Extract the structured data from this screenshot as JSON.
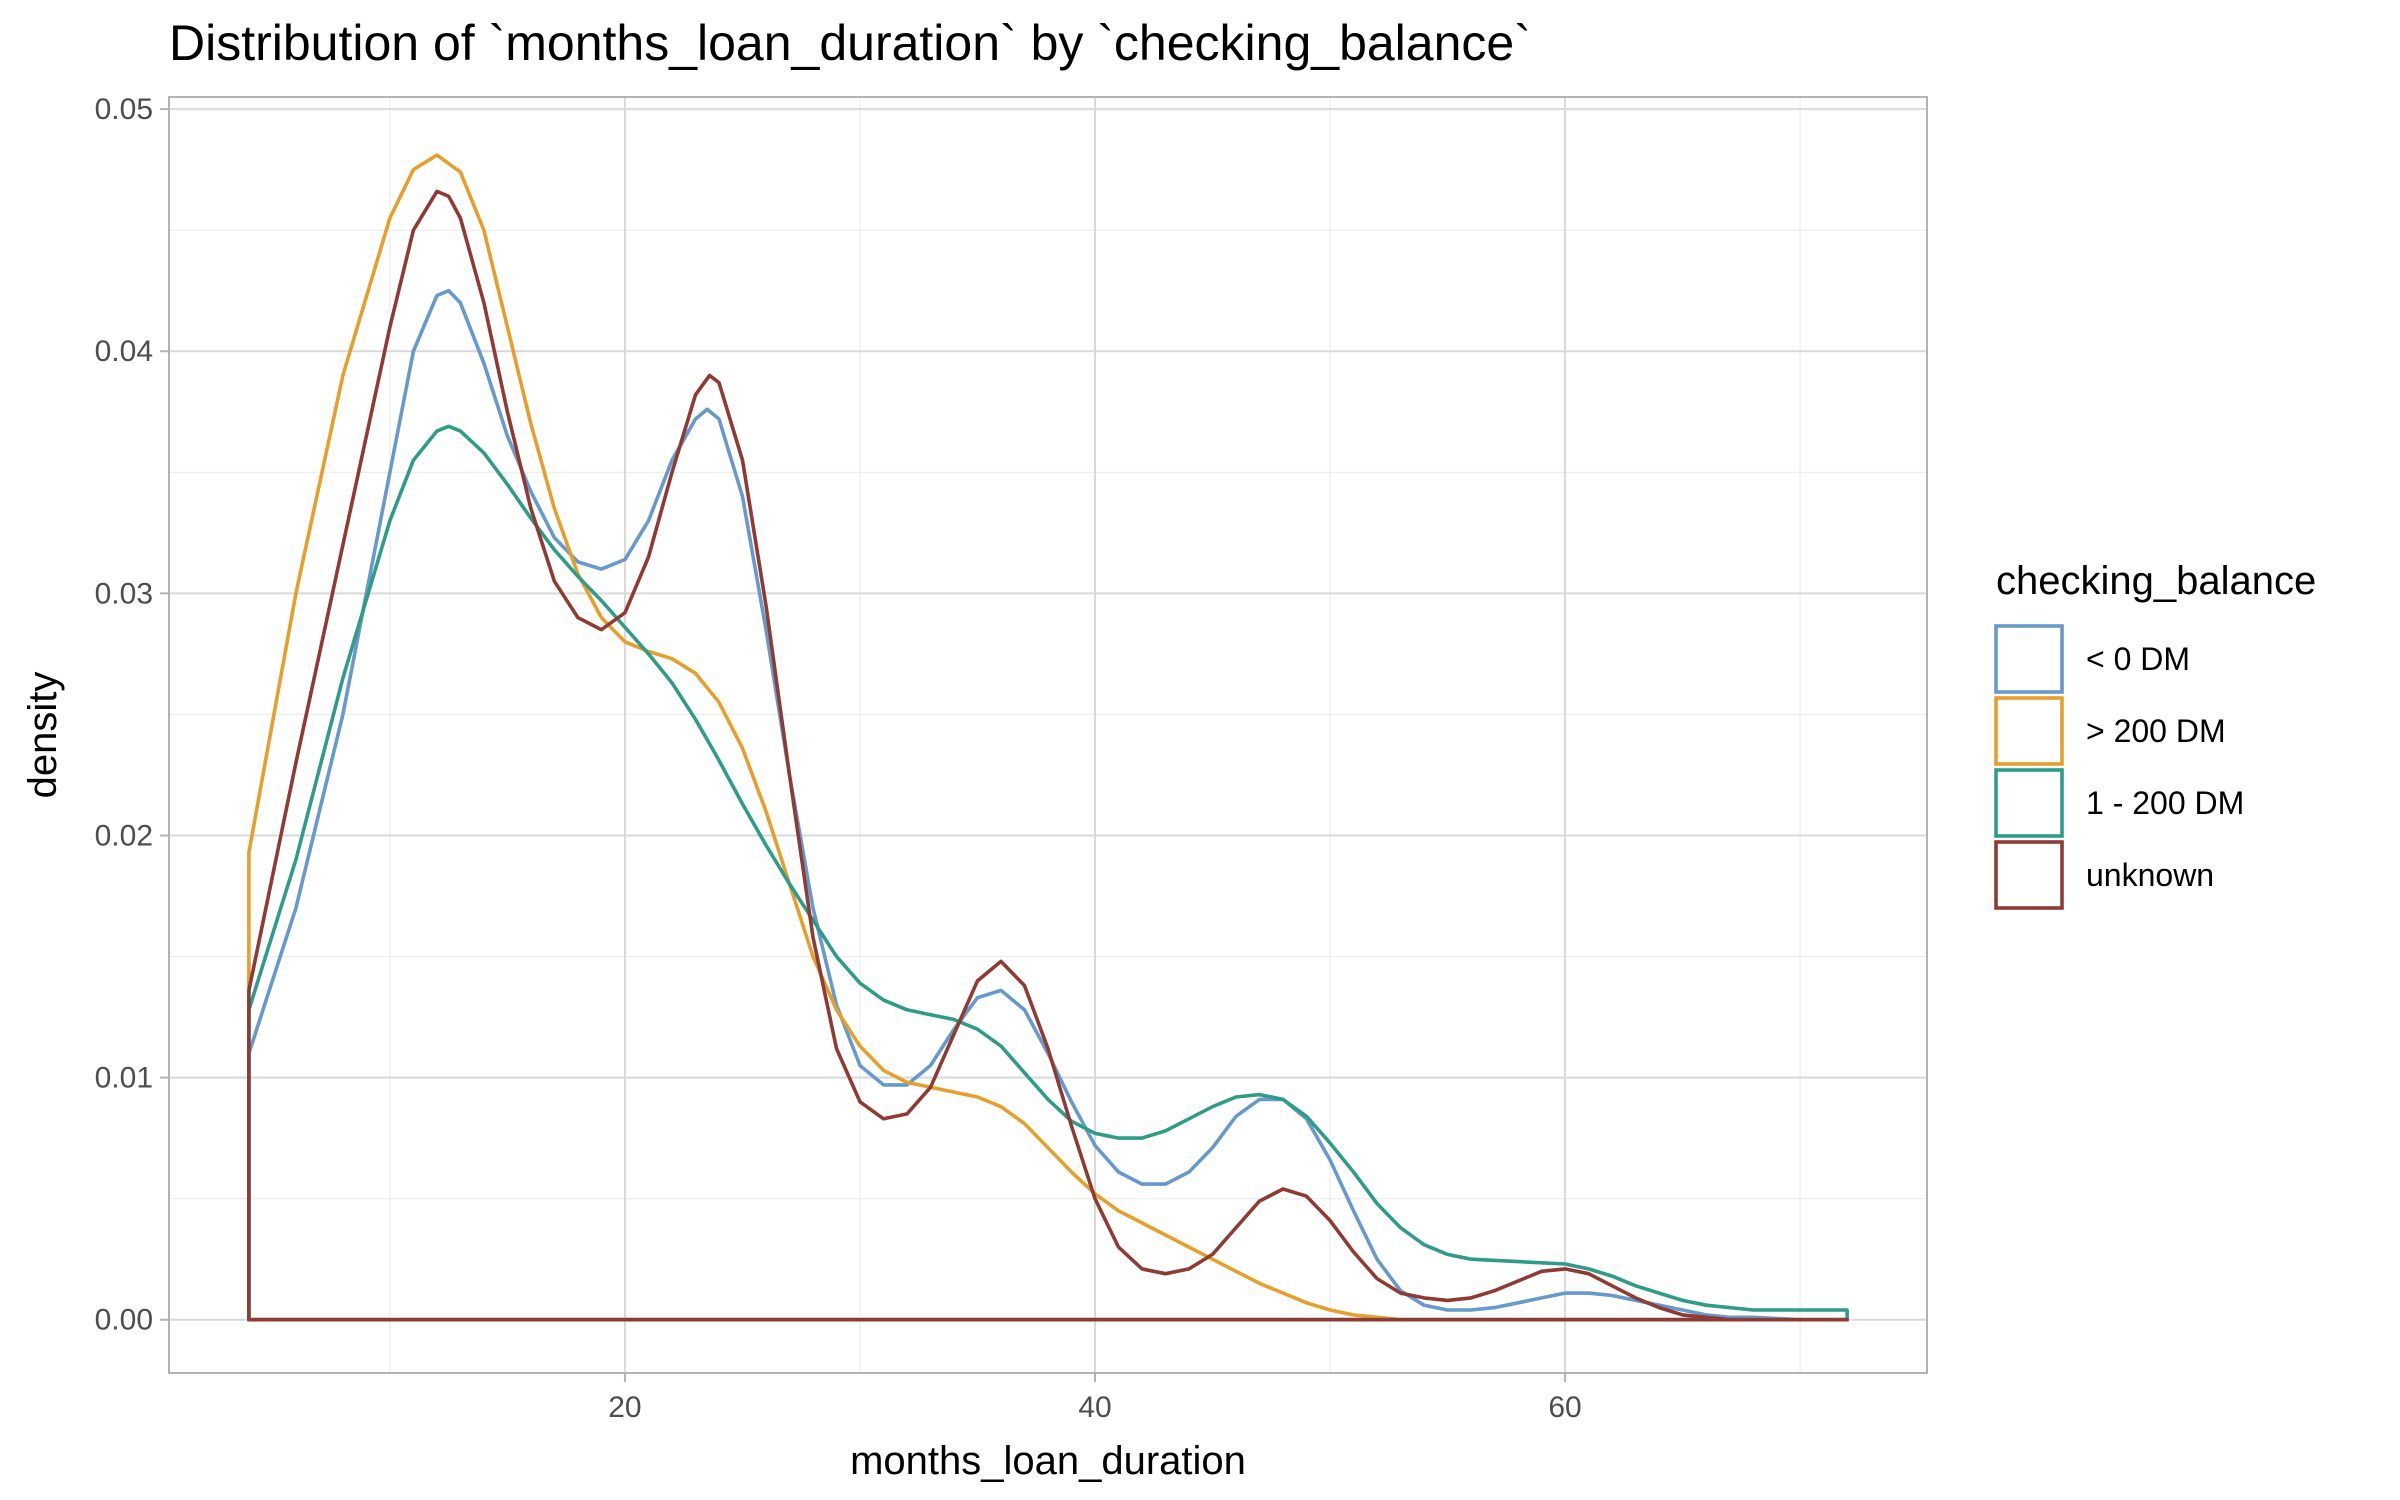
{
  "chart_data": {
    "type": "line",
    "title": "Distribution of `months_loan_duration` by `checking_balance`",
    "xlabel": "months_loan_duration",
    "ylabel": "density",
    "xlim": [
      0.6,
      75.4
    ],
    "ylim": [
      -0.0022,
      0.0505
    ],
    "x_ticks": [
      20,
      40,
      60
    ],
    "x_tick_labels": [
      "20",
      "40",
      "60"
    ],
    "x_minor_ticks": [
      10,
      30,
      50,
      70
    ],
    "y_ticks": [
      0,
      0.01,
      0.02,
      0.03,
      0.04,
      0.05
    ],
    "y_tick_labels": [
      "0.00",
      "0.01",
      "0.02",
      "0.03",
      "0.04",
      "0.05"
    ],
    "y_minor_ticks": [
      0.005,
      0.015,
      0.025,
      0.035,
      0.045
    ],
    "grid": true,
    "legend_position": "right",
    "legend_title": "checking_balance",
    "series": [
      {
        "name": "< 0 DM",
        "color": "#6699cc",
        "x_range": [
          4,
          72
        ],
        "points": [
          [
            4,
            0.011
          ],
          [
            6,
            0.017
          ],
          [
            8,
            0.025
          ],
          [
            10,
            0.035
          ],
          [
            11,
            0.04
          ],
          [
            12,
            0.0423
          ],
          [
            12.5,
            0.0425
          ],
          [
            13,
            0.042
          ],
          [
            14,
            0.0395
          ],
          [
            15,
            0.0365
          ],
          [
            16,
            0.0342
          ],
          [
            17,
            0.0323
          ],
          [
            18,
            0.0313
          ],
          [
            19,
            0.031
          ],
          [
            20,
            0.0314
          ],
          [
            21,
            0.033
          ],
          [
            22,
            0.0355
          ],
          [
            23,
            0.0372
          ],
          [
            23.5,
            0.0376
          ],
          [
            24,
            0.0372
          ],
          [
            25,
            0.034
          ],
          [
            26,
            0.0285
          ],
          [
            27,
            0.0225
          ],
          [
            28,
            0.017
          ],
          [
            29,
            0.013
          ],
          [
            30,
            0.0105
          ],
          [
            31,
            0.0097
          ],
          [
            32,
            0.0097
          ],
          [
            33,
            0.0105
          ],
          [
            34,
            0.012
          ],
          [
            35,
            0.0133
          ],
          [
            36,
            0.0136
          ],
          [
            37,
            0.0128
          ],
          [
            38,
            0.011
          ],
          [
            39,
            0.009
          ],
          [
            40,
            0.0072
          ],
          [
            41,
            0.0061
          ],
          [
            42,
            0.0056
          ],
          [
            43,
            0.0056
          ],
          [
            44,
            0.0061
          ],
          [
            45,
            0.0071
          ],
          [
            46,
            0.0084
          ],
          [
            47,
            0.0091
          ],
          [
            48,
            0.0091
          ],
          [
            49,
            0.0083
          ],
          [
            50,
            0.0066
          ],
          [
            51,
            0.0045
          ],
          [
            52,
            0.0025
          ],
          [
            53,
            0.0012
          ],
          [
            54,
            0.0006
          ],
          [
            55,
            0.0004
          ],
          [
            56,
            0.0004
          ],
          [
            57,
            0.0005
          ],
          [
            58,
            0.0007
          ],
          [
            59,
            0.0009
          ],
          [
            60,
            0.0011
          ],
          [
            61,
            0.0011
          ],
          [
            62,
            0.001
          ],
          [
            63,
            0.0008
          ],
          [
            64,
            0.0006
          ],
          [
            65,
            0.0004
          ],
          [
            66,
            0.0002
          ],
          [
            67,
            0.0001
          ],
          [
            68,
            0.0001
          ],
          [
            70,
            0.0
          ],
          [
            72,
            0.0
          ]
        ]
      },
      {
        "name": "> 200 DM",
        "color": "#e69f2b",
        "x_range": [
          4,
          72
        ],
        "points": [
          [
            4,
            0.0193
          ],
          [
            6,
            0.03
          ],
          [
            8,
            0.039
          ],
          [
            10,
            0.0455
          ],
          [
            11,
            0.0475
          ],
          [
            12,
            0.0481
          ],
          [
            13,
            0.0474
          ],
          [
            14,
            0.045
          ],
          [
            15,
            0.041
          ],
          [
            16,
            0.037
          ],
          [
            17,
            0.0335
          ],
          [
            18,
            0.0308
          ],
          [
            19,
            0.029
          ],
          [
            20,
            0.028
          ],
          [
            21,
            0.0276
          ],
          [
            22,
            0.0273
          ],
          [
            23,
            0.0267
          ],
          [
            24,
            0.0255
          ],
          [
            25,
            0.0236
          ],
          [
            26,
            0.021
          ],
          [
            27,
            0.018
          ],
          [
            28,
            0.015
          ],
          [
            29,
            0.0128
          ],
          [
            30,
            0.0113
          ],
          [
            31,
            0.0103
          ],
          [
            32,
            0.0098
          ],
          [
            33,
            0.0096
          ],
          [
            34,
            0.0094
          ],
          [
            35,
            0.0092
          ],
          [
            36,
            0.0088
          ],
          [
            37,
            0.0081
          ],
          [
            38,
            0.0071
          ],
          [
            39,
            0.0061
          ],
          [
            40,
            0.0052
          ],
          [
            41,
            0.0045
          ],
          [
            42,
            0.004
          ],
          [
            43,
            0.0035
          ],
          [
            44,
            0.003
          ],
          [
            45,
            0.0025
          ],
          [
            46,
            0.002
          ],
          [
            47,
            0.0015
          ],
          [
            48,
            0.0011
          ],
          [
            49,
            0.0007
          ],
          [
            50,
            0.0004
          ],
          [
            51,
            0.0002
          ],
          [
            52,
            0.0001
          ],
          [
            53,
            0.0
          ],
          [
            55,
            0.0
          ],
          [
            60,
            0.0
          ],
          [
            65,
            0.0
          ],
          [
            72,
            0.0
          ]
        ]
      },
      {
        "name": "1 - 200 DM",
        "color": "#2f9c8a",
        "x_range": [
          4,
          72
        ],
        "points": [
          [
            4,
            0.0128
          ],
          [
            6,
            0.019
          ],
          [
            8,
            0.0265
          ],
          [
            10,
            0.033
          ],
          [
            11,
            0.0355
          ],
          [
            12,
            0.0367
          ],
          [
            12.5,
            0.0369
          ],
          [
            13,
            0.0367
          ],
          [
            14,
            0.0358
          ],
          [
            15,
            0.0345
          ],
          [
            16,
            0.0331
          ],
          [
            17,
            0.0318
          ],
          [
            18,
            0.0307
          ],
          [
            19,
            0.0297
          ],
          [
            20,
            0.0286
          ],
          [
            21,
            0.0275
          ],
          [
            22,
            0.0263
          ],
          [
            23,
            0.0248
          ],
          [
            24,
            0.0231
          ],
          [
            25,
            0.0213
          ],
          [
            26,
            0.0196
          ],
          [
            27,
            0.018
          ],
          [
            28,
            0.0165
          ],
          [
            29,
            0.015
          ],
          [
            30,
            0.0139
          ],
          [
            31,
            0.0132
          ],
          [
            32,
            0.0128
          ],
          [
            33,
            0.0126
          ],
          [
            34,
            0.0124
          ],
          [
            35,
            0.012
          ],
          [
            36,
            0.0113
          ],
          [
            37,
            0.0102
          ],
          [
            38,
            0.0091
          ],
          [
            39,
            0.0082
          ],
          [
            40,
            0.0077
          ],
          [
            41,
            0.0075
          ],
          [
            42,
            0.0075
          ],
          [
            43,
            0.0078
          ],
          [
            44,
            0.0083
          ],
          [
            45,
            0.0088
          ],
          [
            46,
            0.0092
          ],
          [
            47,
            0.0093
          ],
          [
            48,
            0.0091
          ],
          [
            49,
            0.0084
          ],
          [
            50,
            0.0073
          ],
          [
            51,
            0.0061
          ],
          [
            52,
            0.0048
          ],
          [
            53,
            0.0038
          ],
          [
            54,
            0.0031
          ],
          [
            55,
            0.0027
          ],
          [
            56,
            0.0025
          ],
          [
            58,
            0.0024
          ],
          [
            60,
            0.0023
          ],
          [
            61,
            0.0021
          ],
          [
            62,
            0.0018
          ],
          [
            63,
            0.0014
          ],
          [
            64,
            0.0011
          ],
          [
            65,
            0.0008
          ],
          [
            66,
            0.0006
          ],
          [
            68,
            0.0004
          ],
          [
            70,
            0.0004
          ],
          [
            72,
            0.0004
          ]
        ]
      },
      {
        "name": "unknown",
        "color": "#8f3b34",
        "x_range": [
          4,
          72
        ],
        "points": [
          [
            4,
            0.0136
          ],
          [
            6,
            0.023
          ],
          [
            8,
            0.032
          ],
          [
            10,
            0.041
          ],
          [
            11,
            0.045
          ],
          [
            12,
            0.0466
          ],
          [
            12.5,
            0.0464
          ],
          [
            13,
            0.0455
          ],
          [
            14,
            0.042
          ],
          [
            15,
            0.0375
          ],
          [
            16,
            0.0335
          ],
          [
            17,
            0.0305
          ],
          [
            18,
            0.029
          ],
          [
            19,
            0.0285
          ],
          [
            20,
            0.0292
          ],
          [
            21,
            0.0315
          ],
          [
            22,
            0.035
          ],
          [
            23,
            0.0382
          ],
          [
            23.6,
            0.039
          ],
          [
            24,
            0.0387
          ],
          [
            25,
            0.0355
          ],
          [
            26,
            0.0295
          ],
          [
            27,
            0.0225
          ],
          [
            28,
            0.0158
          ],
          [
            29,
            0.0112
          ],
          [
            30,
            0.009
          ],
          [
            31,
            0.0083
          ],
          [
            32,
            0.0085
          ],
          [
            33,
            0.0096
          ],
          [
            34,
            0.0118
          ],
          [
            35,
            0.014
          ],
          [
            36,
            0.0148
          ],
          [
            37,
            0.0138
          ],
          [
            38,
            0.0112
          ],
          [
            39,
            0.008
          ],
          [
            40,
            0.005
          ],
          [
            41,
            0.003
          ],
          [
            42,
            0.0021
          ],
          [
            43,
            0.0019
          ],
          [
            44,
            0.0021
          ],
          [
            45,
            0.0027
          ],
          [
            46,
            0.0038
          ],
          [
            47,
            0.0049
          ],
          [
            48,
            0.0054
          ],
          [
            49,
            0.0051
          ],
          [
            50,
            0.0041
          ],
          [
            51,
            0.0028
          ],
          [
            52,
            0.0017
          ],
          [
            53,
            0.0011
          ],
          [
            54,
            0.0009
          ],
          [
            55,
            0.0008
          ],
          [
            56,
            0.0009
          ],
          [
            57,
            0.0012
          ],
          [
            58,
            0.0016
          ],
          [
            59,
            0.002
          ],
          [
            60,
            0.0021
          ],
          [
            61,
            0.0019
          ],
          [
            62,
            0.0014
          ],
          [
            63,
            0.0009
          ],
          [
            64,
            0.0005
          ],
          [
            65,
            0.0002
          ],
          [
            66,
            0.0001
          ],
          [
            67,
            0.0
          ],
          [
            70,
            0.0
          ],
          [
            72,
            0.0
          ]
        ]
      }
    ]
  }
}
